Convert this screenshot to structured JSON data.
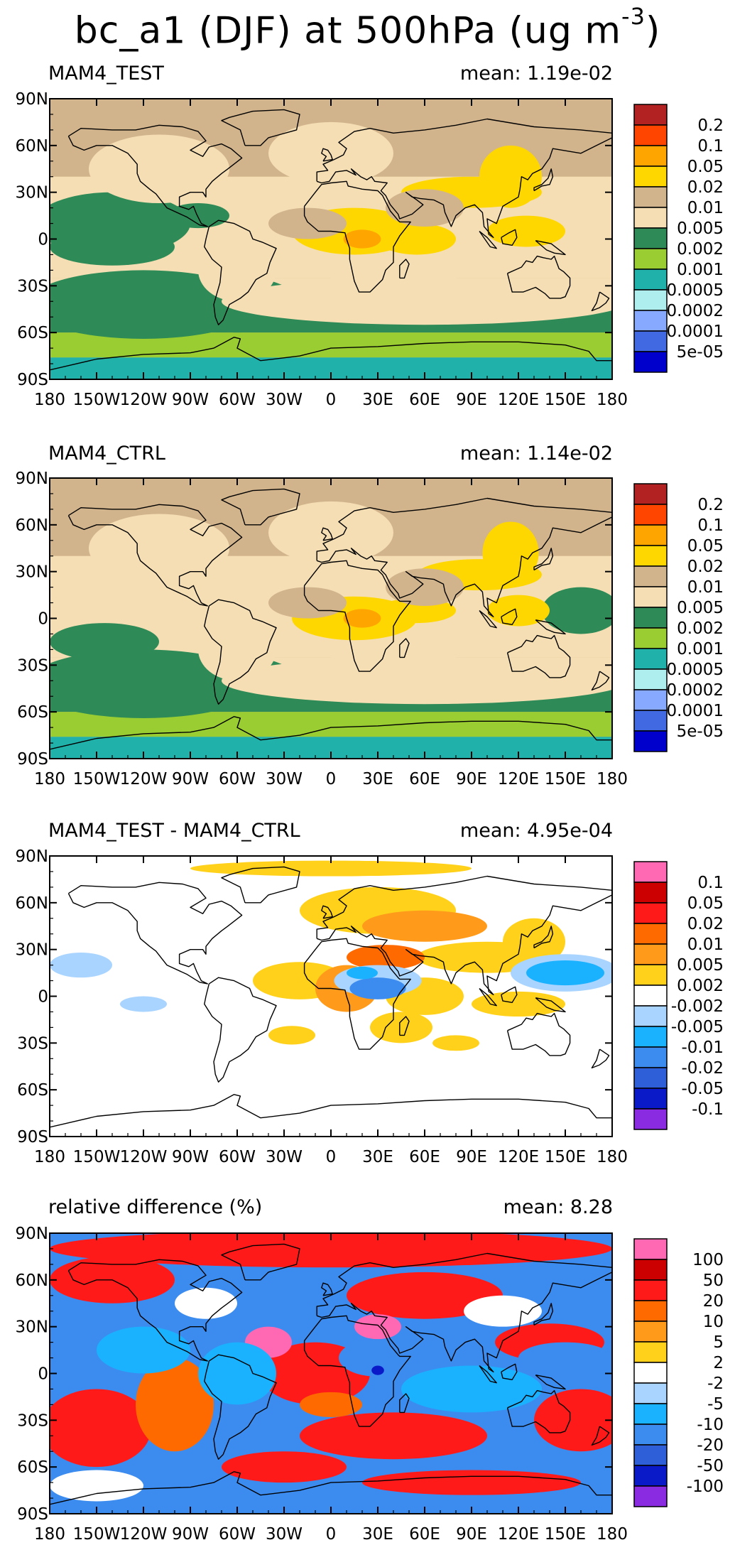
{
  "title": {
    "main": "bc_a1 (DJF) at 500hPa (ug m",
    "exponent": "-3",
    "close": ")"
  },
  "chart_data": [
    {
      "type": "heatmap",
      "panel_label": "MAM4_TEST",
      "mean_label": "mean: 1.19e-02",
      "mean_value": 0.0119,
      "xlabel": "",
      "ylabel": "",
      "xlim": [
        -180,
        180
      ],
      "ylim": [
        -90,
        90
      ],
      "x_ticks": [
        "180",
        "150W",
        "120W",
        "90W",
        "60W",
        "30W",
        "0",
        "30E",
        "60E",
        "90E",
        "120E",
        "150E",
        "180"
      ],
      "y_ticks": [
        "90N",
        "60N",
        "30N",
        "0",
        "30S",
        "60S",
        "90S"
      ],
      "legend": {
        "labels": [
          "0.2",
          "0.1",
          "0.05",
          "0.02",
          "0.01",
          "0.005",
          "0.002",
          "0.001",
          "0.0005",
          "0.0002",
          "0.0001",
          "5e-05"
        ],
        "colors": [
          "#b22222",
          "#ff4500",
          "#ffa500",
          "#ffd700",
          "#d2b48c",
          "#f5deb3",
          "#2e8b57",
          "#9acd32",
          "#20b2aa",
          "#afeeee",
          "#87a9ff",
          "#4169e1",
          "#0000cd"
        ]
      },
      "field_colors": {
        "ocean": "#d2b48c",
        "mid": "#f5deb3",
        "source": "#ffd700",
        "hot": "#ffa500",
        "south1": "#2e8b57",
        "south2": "#9acd32",
        "pole": "#20b2aa"
      }
    },
    {
      "type": "heatmap",
      "panel_label": "MAM4_CTRL",
      "mean_label": "mean: 1.14e-02",
      "mean_value": 0.0114,
      "xlabel": "",
      "ylabel": "",
      "xlim": [
        -180,
        180
      ],
      "ylim": [
        -90,
        90
      ],
      "x_ticks": [
        "180",
        "150W",
        "120W",
        "90W",
        "60W",
        "30W",
        "0",
        "30E",
        "60E",
        "90E",
        "120E",
        "150E",
        "180"
      ],
      "y_ticks": [
        "90N",
        "60N",
        "30N",
        "0",
        "30S",
        "60S",
        "90S"
      ],
      "legend": {
        "labels": [
          "0.2",
          "0.1",
          "0.05",
          "0.02",
          "0.01",
          "0.005",
          "0.002",
          "0.001",
          "0.0005",
          "0.0002",
          "0.0001",
          "5e-05"
        ],
        "colors": [
          "#b22222",
          "#ff4500",
          "#ffa500",
          "#ffd700",
          "#d2b48c",
          "#f5deb3",
          "#2e8b57",
          "#9acd32",
          "#20b2aa",
          "#afeeee",
          "#87a9ff",
          "#4169e1",
          "#0000cd"
        ]
      },
      "field_colors": {
        "ocean": "#d2b48c",
        "mid": "#f5deb3",
        "source": "#ffd700",
        "hot": "#ffa500",
        "south1": "#2e8b57",
        "south2": "#9acd32",
        "pole": "#20b2aa"
      }
    },
    {
      "type": "heatmap",
      "panel_label": "MAM4_TEST - MAM4_CTRL",
      "mean_label": "mean: 4.95e-04",
      "mean_value": 0.000495,
      "xlabel": "",
      "ylabel": "",
      "xlim": [
        -180,
        180
      ],
      "ylim": [
        -90,
        90
      ],
      "x_ticks": [
        "180",
        "150W",
        "120W",
        "90W",
        "60W",
        "30W",
        "0",
        "30E",
        "60E",
        "90E",
        "120E",
        "150E",
        "180"
      ],
      "y_ticks": [
        "90N",
        "60N",
        "30N",
        "0",
        "30S",
        "60S",
        "90S"
      ],
      "legend": {
        "labels": [
          "0.1",
          "0.05",
          "0.02",
          "0.01",
          "0.005",
          "0.002",
          "-0.002",
          "-0.005",
          "-0.01",
          "-0.02",
          "-0.05",
          "-0.1"
        ],
        "colors": [
          "#ff69b4",
          "#cc0000",
          "#ff1a1a",
          "#ff6a00",
          "#ff9a1a",
          "#ffd11a",
          "#ffffff",
          "#a9d4ff",
          "#1ab2ff",
          "#3c8cf0",
          "#2f5fd8",
          "#0a1ac8",
          "#8a2be2"
        ]
      },
      "field_colors": {
        "background": "#ffffff"
      }
    },
    {
      "type": "heatmap",
      "panel_label": "relative difference (%)",
      "mean_label": "mean:  8.28",
      "mean_value": 8.28,
      "xlabel": "",
      "ylabel": "",
      "xlim": [
        -180,
        180
      ],
      "ylim": [
        -90,
        90
      ],
      "x_ticks": [
        "180",
        "150W",
        "120W",
        "90W",
        "60W",
        "30W",
        "0",
        "30E",
        "60E",
        "90E",
        "120E",
        "150E",
        "180"
      ],
      "y_ticks": [
        "90N",
        "60N",
        "30N",
        "0",
        "30S",
        "60S",
        "90S"
      ],
      "legend": {
        "labels": [
          "100",
          "50",
          "20",
          "10",
          "5",
          "2",
          "-2",
          "-5",
          "-10",
          "-20",
          "-50",
          "-100"
        ],
        "colors": [
          "#ff69b4",
          "#cc0000",
          "#ff1a1a",
          "#ff6a00",
          "#ff9a1a",
          "#ffd11a",
          "#ffffff",
          "#a9d4ff",
          "#1ab2ff",
          "#3c8cf0",
          "#2f5fd8",
          "#0a1ac8",
          "#8a2be2"
        ]
      },
      "field_colors": {
        "background": "#3c8cf0"
      }
    }
  ]
}
